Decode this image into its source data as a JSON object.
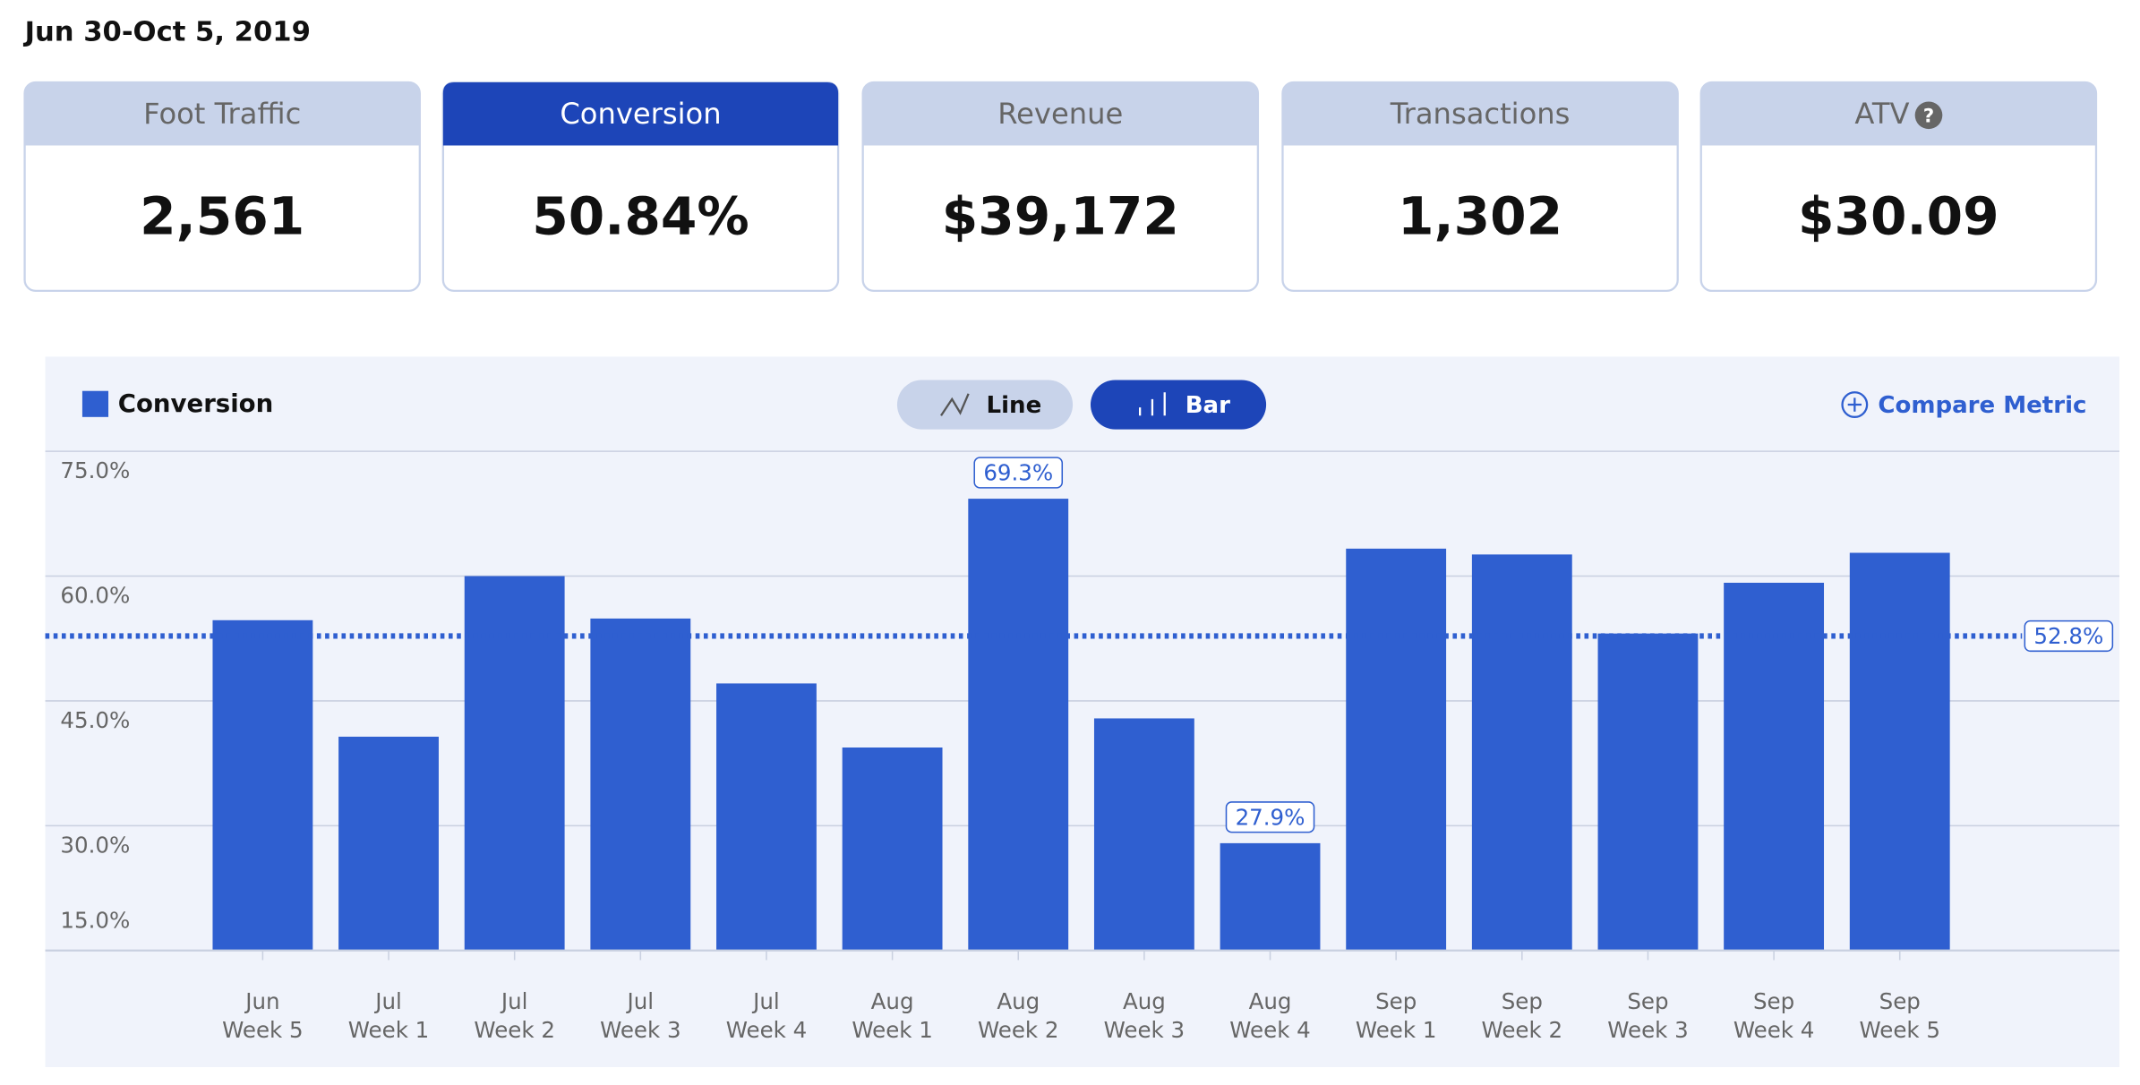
{
  "date_range": "Jun 30-Oct 5, 2019",
  "metrics": [
    {
      "label": "Foot Traffic",
      "value": "2,561",
      "active": false
    },
    {
      "label": "Conversion",
      "value": "50.84%",
      "active": true
    },
    {
      "label": "Revenue",
      "value": "$39,172",
      "active": false
    },
    {
      "label": "Transactions",
      "value": "1,302",
      "active": false
    },
    {
      "label": "ATV",
      "value": "$30.09",
      "active": false,
      "help_icon": "?"
    }
  ],
  "toggle": {
    "line": "Line",
    "bar": "Bar",
    "selected": "bar"
  },
  "compare_metric": "Compare Metric",
  "chart_data": {
    "type": "bar",
    "categories": [
      [
        "Jun",
        "Week 5"
      ],
      [
        "Jul",
        "Week 1"
      ],
      [
        "Jul",
        "Week 2"
      ],
      [
        "Jul",
        "Week 3"
      ],
      [
        "Jul",
        "Week 4"
      ],
      [
        "Aug",
        "Week 1"
      ],
      [
        "Aug",
        "Week 2"
      ],
      [
        "Aug",
        "Week 3"
      ],
      [
        "Aug",
        "Week 4"
      ],
      [
        "Sep",
        "Week 1"
      ],
      [
        "Sep",
        "Week 2"
      ],
      [
        "Sep",
        "Week 3"
      ],
      [
        "Sep",
        "Week 4"
      ],
      [
        "Sep",
        "Week 5"
      ]
    ],
    "series": [
      {
        "name": "Conversion",
        "color": "#2f5fd0",
        "values": [
          54.7,
          40.7,
          60.0,
          54.9,
          47.1,
          39.4,
          69.3,
          42.9,
          27.9,
          63.3,
          62.6,
          53.1,
          59.2,
          62.8
        ],
        "value_labels": [
          null,
          null,
          null,
          null,
          null,
          null,
          "69.3%",
          null,
          "27.9%",
          null,
          null,
          null,
          null,
          null
        ]
      }
    ],
    "average": {
      "value": 52.8,
      "label": "52.8%"
    },
    "ylim": [
      15,
      75
    ],
    "yticks": [
      {
        "value": 75,
        "label": "75.0%"
      },
      {
        "value": 60,
        "label": "60.0%"
      },
      {
        "value": 45,
        "label": "45.0%"
      },
      {
        "value": 30,
        "label": "30.0%"
      },
      {
        "value": 15,
        "label": "15.0%"
      }
    ],
    "grid": true
  }
}
